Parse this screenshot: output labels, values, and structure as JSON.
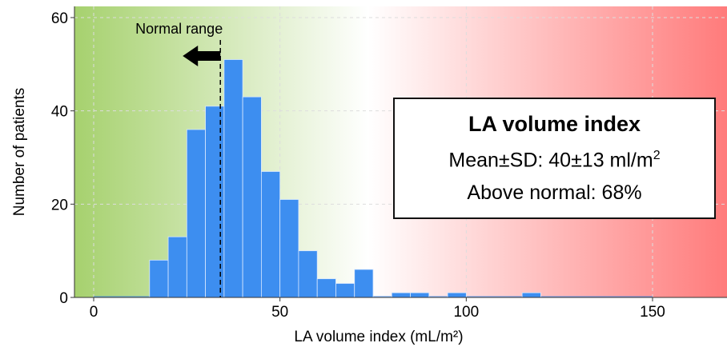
{
  "chart_data": {
    "type": "bar",
    "xlabel": "LA volume index (mL/m²)",
    "ylabel": "Number of patients",
    "xlim": [
      -5,
      167
    ],
    "ylim": [
      0,
      62
    ],
    "x_ticks": [
      0,
      50,
      100,
      150
    ],
    "y_ticks": [
      0,
      20,
      40,
      60
    ],
    "bin_width": 5,
    "bins": [
      {
        "x0": 15,
        "x1": 20,
        "value": 8
      },
      {
        "x0": 20,
        "x1": 25,
        "value": 13
      },
      {
        "x0": 25,
        "x1": 30,
        "value": 36
      },
      {
        "x0": 30,
        "x1": 35,
        "value": 41
      },
      {
        "x0": 35,
        "x1": 40,
        "value": 51
      },
      {
        "x0": 40,
        "x1": 45,
        "value": 43
      },
      {
        "x0": 45,
        "x1": 50,
        "value": 27
      },
      {
        "x0": 50,
        "x1": 55,
        "value": 21
      },
      {
        "x0": 55,
        "x1": 60,
        "value": 10
      },
      {
        "x0": 60,
        "x1": 65,
        "value": 4
      },
      {
        "x0": 65,
        "x1": 70,
        "value": 3
      },
      {
        "x0": 70,
        "x1": 75,
        "value": 6
      },
      {
        "x0": 80,
        "x1": 85,
        "value": 1
      },
      {
        "x0": 85,
        "x1": 90,
        "value": 1
      },
      {
        "x0": 95,
        "x1": 100,
        "value": 1
      },
      {
        "x0": 115,
        "x1": 120,
        "value": 1
      }
    ],
    "normal_upper_limit": 34,
    "normal_range_label": "Normal range",
    "grid": true,
    "background_gradient": {
      "left": "#a6d16e",
      "middle": "#ffffff",
      "right": "#ff7b7b"
    },
    "bar_color": "#3d8ef0",
    "box": {
      "title": "LA volume index",
      "mean_sd_text": "Mean±SD: 40±13 ml/m",
      "mean_sd_superscript": "2",
      "above_normal_text": "Above normal: 68%"
    }
  }
}
